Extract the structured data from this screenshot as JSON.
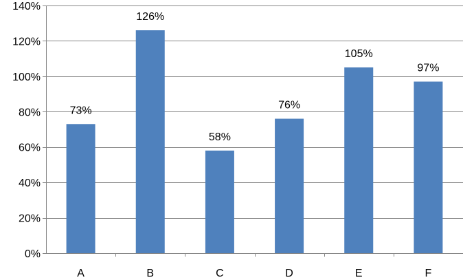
{
  "chart_data": {
    "type": "bar",
    "title": "",
    "xlabel": "",
    "ylabel": "",
    "categories": [
      "A",
      "B",
      "C",
      "D",
      "E",
      "F"
    ],
    "values": [
      73,
      126,
      58,
      76,
      105,
      97
    ],
    "data_labels": [
      "73%",
      "126%",
      "58%",
      "76%",
      "105%",
      "97%"
    ],
    "ylim": [
      0,
      140
    ],
    "yticks": [
      0,
      20,
      40,
      60,
      80,
      100,
      120,
      140
    ],
    "ytick_labels": [
      "0%",
      "20%",
      "40%",
      "60%",
      "80%",
      "100%",
      "120%",
      "140%"
    ],
    "grid": true,
    "legend": "none",
    "bar_color": "#4f81bd",
    "grid_color": "#868686"
  }
}
